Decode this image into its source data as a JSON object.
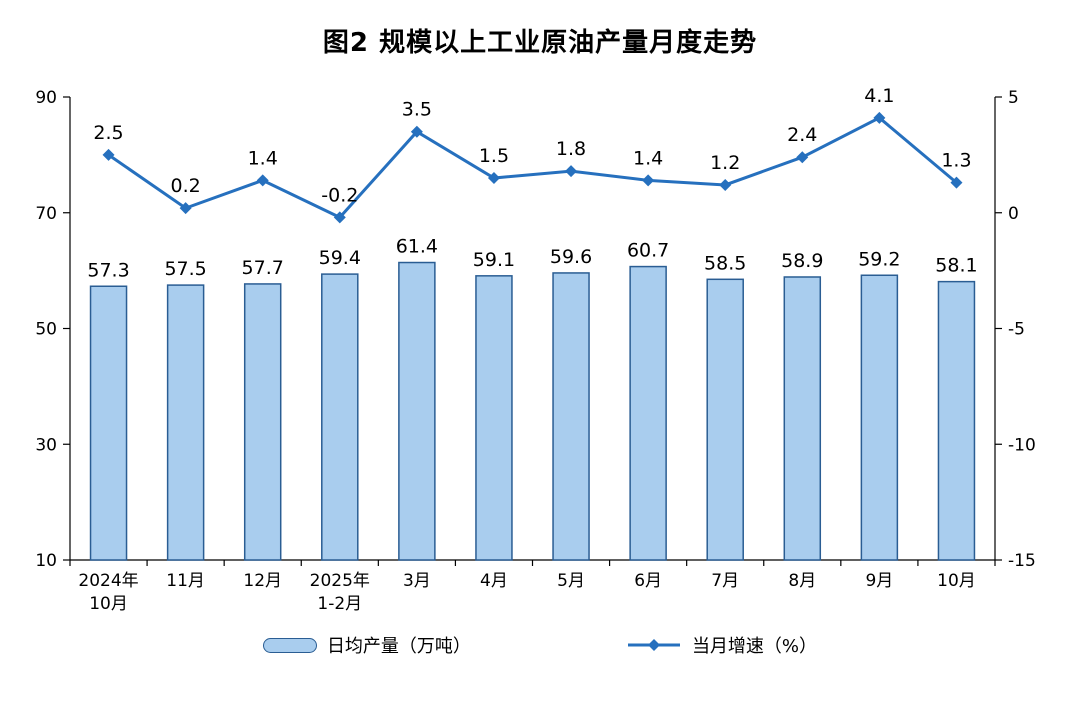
{
  "chart_data": {
    "type": "combo-bar-line",
    "title": "图2 规模以上工业原油产量月度走势",
    "categories": [
      [
        "2024年",
        "10月"
      ],
      [
        "11月"
      ],
      [
        "12月"
      ],
      [
        "2025年",
        "1-2月"
      ],
      [
        "3月"
      ],
      [
        "4月"
      ],
      [
        "5月"
      ],
      [
        "6月"
      ],
      [
        "7月"
      ],
      [
        "8月"
      ],
      [
        "9月"
      ],
      [
        "10月"
      ]
    ],
    "series": [
      {
        "name": "日均产量（万吨）",
        "type": "bar",
        "axis": "left",
        "values": [
          57.3,
          57.5,
          57.7,
          59.4,
          61.4,
          59.1,
          59.6,
          60.7,
          58.5,
          58.9,
          59.2,
          58.1
        ]
      },
      {
        "name": "当月增速（%）",
        "type": "line",
        "axis": "right",
        "values": [
          2.5,
          0.2,
          1.4,
          -0.2,
          3.5,
          1.5,
          1.8,
          1.4,
          1.2,
          2.4,
          4.1,
          1.3
        ]
      }
    ],
    "left_axis": {
      "min": 10,
      "max": 90,
      "ticks": [
        90,
        70,
        50,
        30,
        10
      ]
    },
    "right_axis": {
      "min": -15,
      "max": 5,
      "ticks": [
        5,
        0,
        -5,
        -10,
        -15
      ]
    },
    "grid": false,
    "legend_position": "bottom",
    "colors": {
      "bar_fill": "#A9CDEE",
      "bar_stroke": "#2A5D93",
      "line": "#2670BE",
      "marker": "#2670BE",
      "axis": "#000000",
      "text": "#000000"
    }
  }
}
